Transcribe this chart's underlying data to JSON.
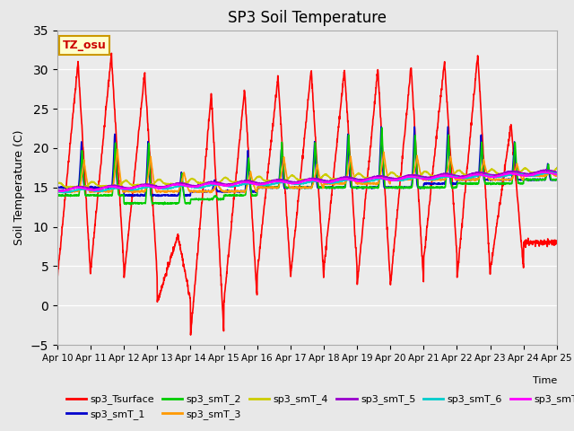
{
  "title": "SP3 Soil Temperature",
  "xlabel": "Time",
  "ylabel": "Soil Temperature (C)",
  "ylim": [
    -5,
    35
  ],
  "tz_label": "TZ_osu",
  "fig_bg_color": "#e8e8e8",
  "plot_bg_color": "#ebebeb",
  "series": {
    "sp3_Tsurface": {
      "color": "#ff0000",
      "lw": 1.2
    },
    "sp3_smT_1": {
      "color": "#0000cc",
      "lw": 1.2
    },
    "sp3_smT_2": {
      "color": "#00cc00",
      "lw": 1.2
    },
    "sp3_smT_3": {
      "color": "#ff9900",
      "lw": 1.2
    },
    "sp3_smT_4": {
      "color": "#cccc00",
      "lw": 1.2
    },
    "sp3_smT_5": {
      "color": "#9900cc",
      "lw": 1.2
    },
    "sp3_smT_6": {
      "color": "#00cccc",
      "lw": 1.2
    },
    "sp3_smT_7": {
      "color": "#ff00ff",
      "lw": 1.2
    }
  },
  "xtick_labels": [
    "Apr 10",
    "Apr 11",
    "Apr 12",
    "Apr 13",
    "Apr 14",
    "Apr 15",
    "Apr 16",
    "Apr 17",
    "Apr 18",
    "Apr 19",
    "Apr 20",
    "Apr 21",
    "Apr 22",
    "Apr 23",
    "Apr 24",
    "Apr 25"
  ],
  "num_days": 15,
  "points_per_day": 144,
  "tsurface_night": [
    3.5,
    4.5,
    3.5,
    0.5,
    -3.8,
    0.5,
    4.0,
    3.5,
    4.5,
    2.5,
    2.5,
    6.0,
    3.5,
    4.5,
    8.0
  ],
  "tsurface_peak": [
    31.0,
    32.0,
    29.5,
    9.0,
    27.0,
    27.5,
    29.0,
    30.0,
    30.0,
    30.0,
    30.5,
    31.0,
    32.0,
    23.0,
    8.0
  ],
  "tsurface_peak_pos": [
    0.62,
    0.62,
    0.62,
    0.62,
    0.62,
    0.62,
    0.62,
    0.62,
    0.62,
    0.62,
    0.62,
    0.62,
    0.62,
    0.62,
    0.62
  ],
  "smt1_peaks": [
    21,
    22,
    21,
    17,
    16,
    20,
    20,
    21,
    22,
    23,
    23,
    23,
    22,
    21,
    18
  ],
  "smt1_lows": [
    15,
    15,
    14,
    14,
    14.5,
    14.5,
    15,
    15,
    15,
    15,
    15,
    15.5,
    16,
    16,
    16
  ],
  "smt2_peaks": [
    20,
    21,
    21,
    17,
    14,
    19,
    21,
    21,
    22,
    23,
    22,
    22,
    21,
    21,
    18
  ],
  "smt2_lows": [
    14,
    14,
    13,
    13,
    13.5,
    14,
    15,
    15,
    15,
    15,
    15,
    15,
    15.5,
    15.5,
    16
  ],
  "smt3_peaks": [
    18.5,
    20,
    19,
    17,
    15.5,
    17,
    19,
    18,
    19,
    19.5,
    19,
    19,
    18.5,
    18,
    17
  ],
  "smt3_lows": [
    14.5,
    14.5,
    14.5,
    14.5,
    14.5,
    14.5,
    15,
    15,
    15.5,
    15.5,
    16,
    16,
    16,
    16,
    16.5
  ]
}
